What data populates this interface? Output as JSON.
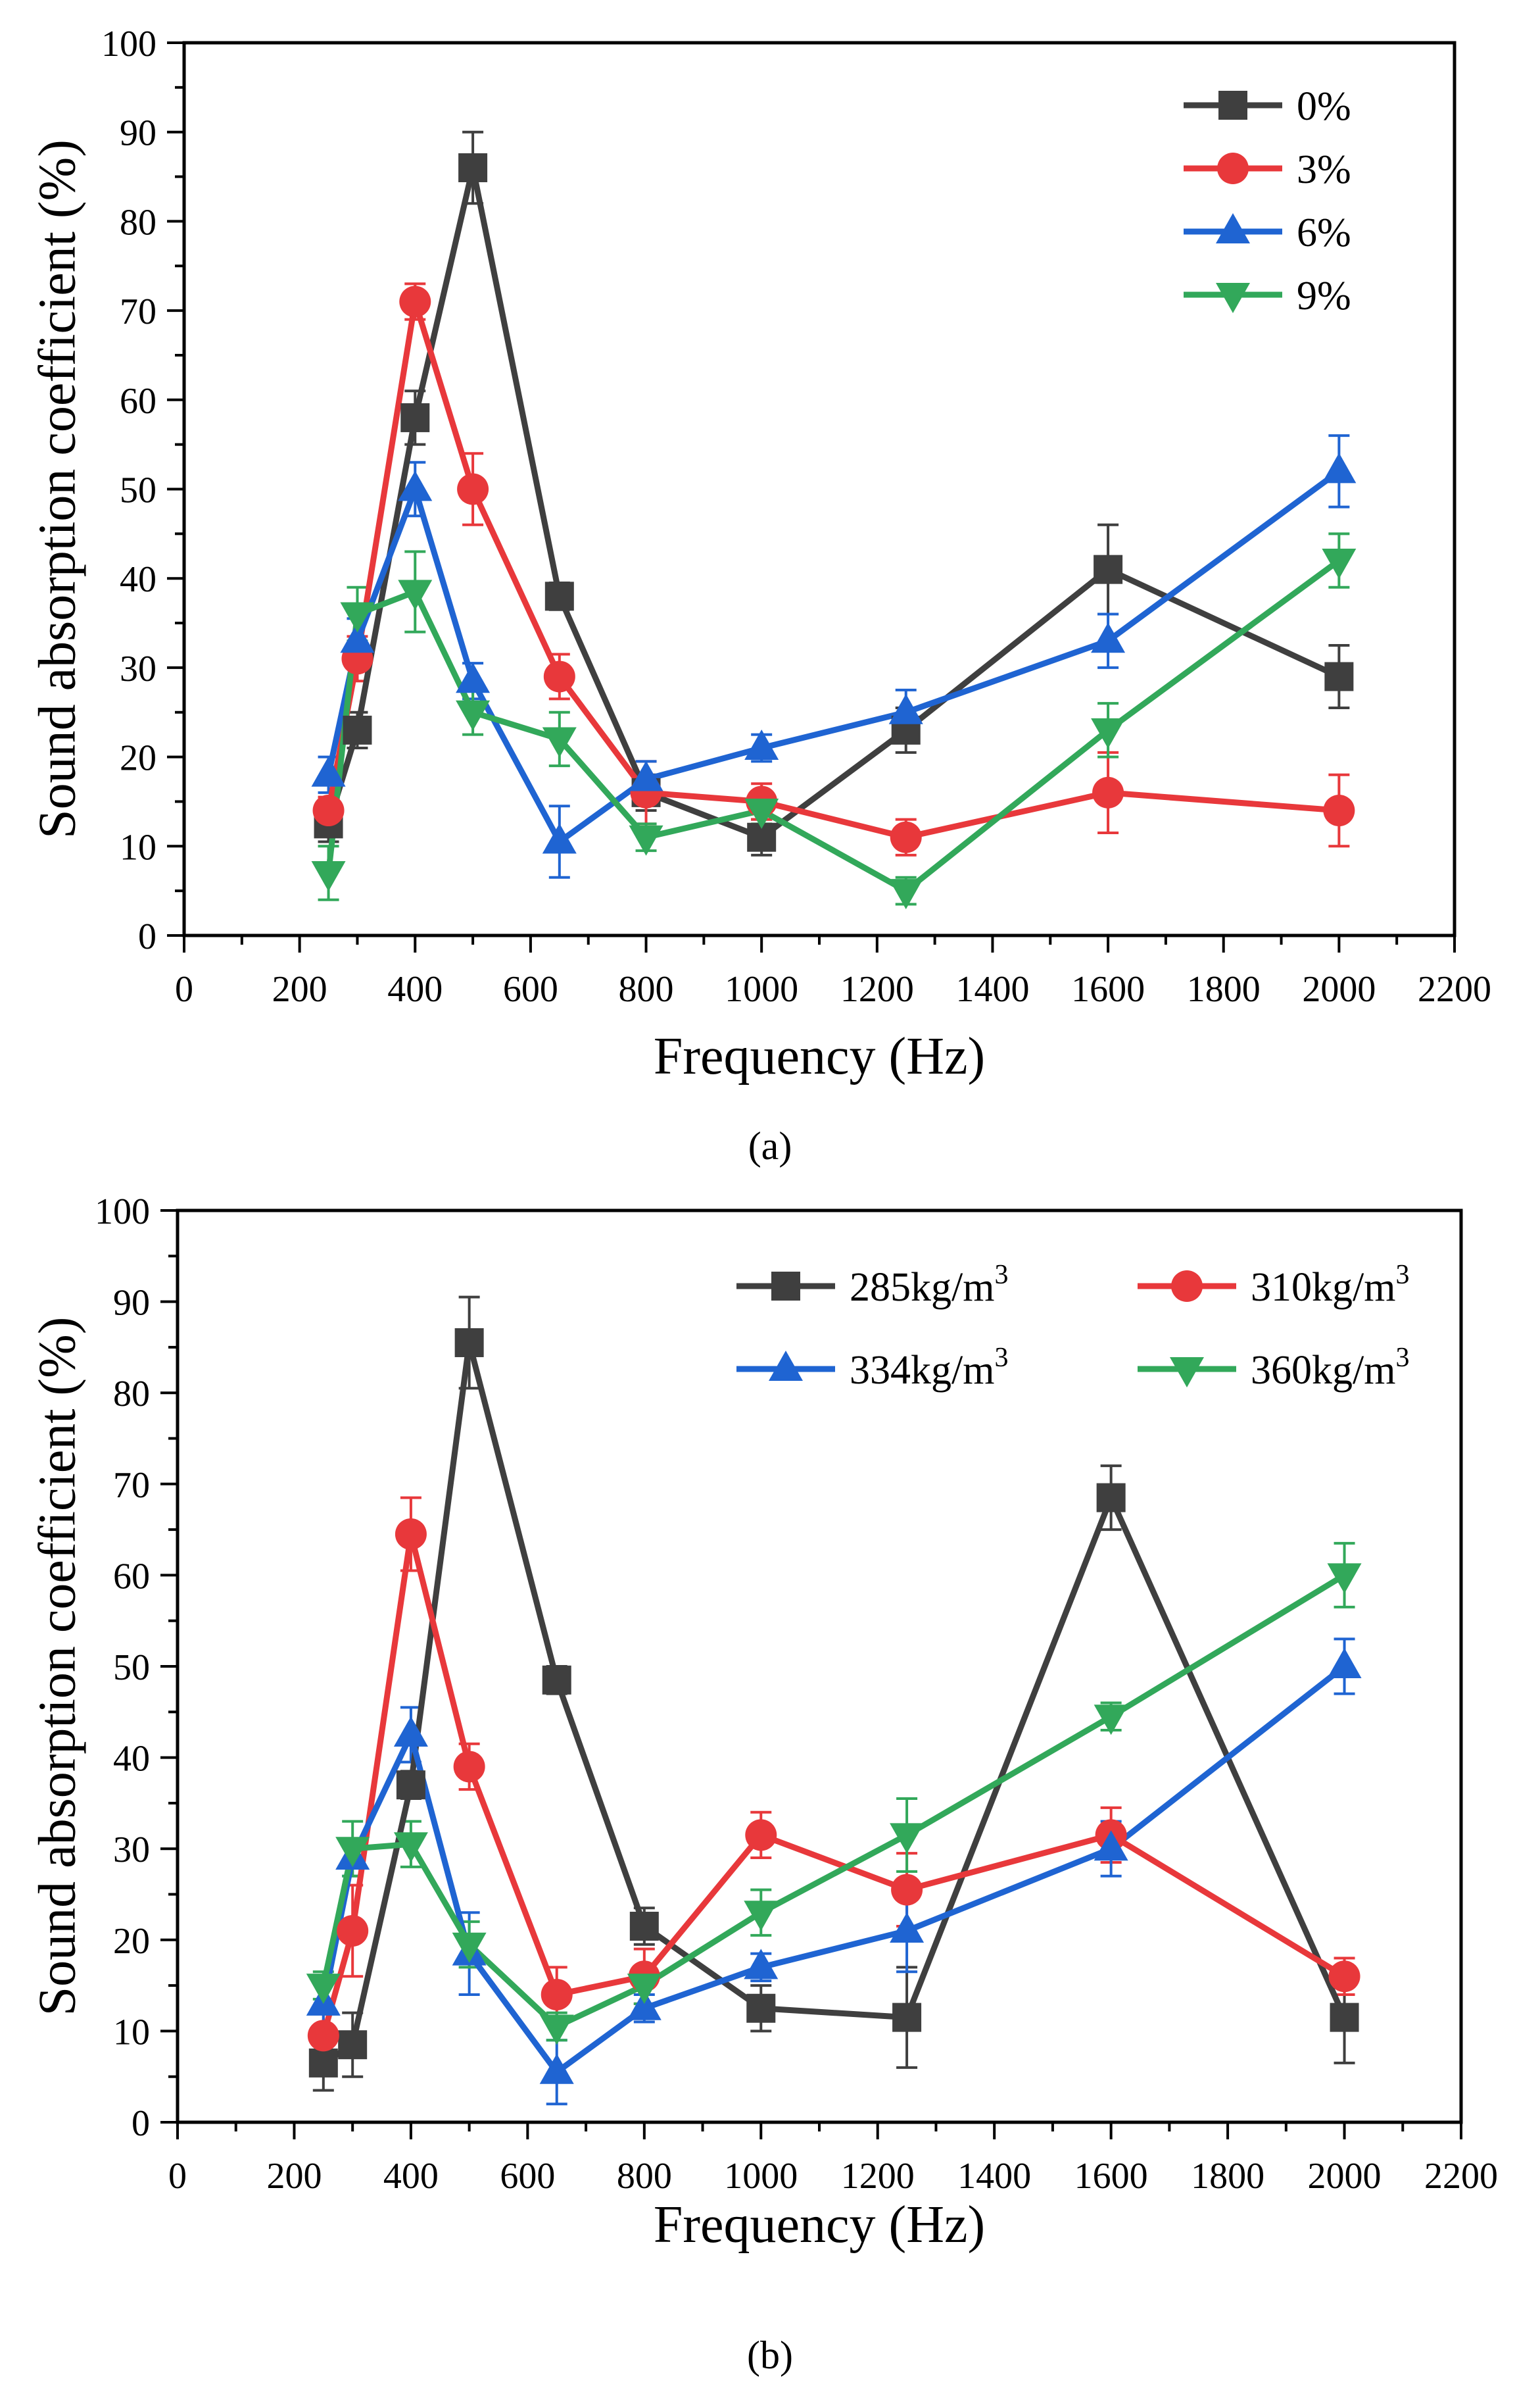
{
  "figure": {
    "panel_labels": [
      "(a)",
      "(b)"
    ]
  },
  "chart_data": [
    {
      "type": "line",
      "panel": "(a)",
      "xlabel": "Frequency (Hz)",
      "ylabel": "Sound absorption coefficient (%)",
      "xlim": [
        0,
        2200
      ],
      "ylim": [
        0,
        100
      ],
      "xticks": [
        0,
        200,
        400,
        600,
        800,
        1000,
        1200,
        1400,
        1600,
        1800,
        2000,
        2200
      ],
      "yticks": [
        0,
        10,
        20,
        30,
        40,
        50,
        60,
        70,
        80,
        90,
        100
      ],
      "legend_position": "top-right",
      "x": [
        250,
        300,
        400,
        500,
        650,
        800,
        1000,
        1250,
        1600,
        2000
      ],
      "series": [
        {
          "name": "0%",
          "marker": "square",
          "color": "#3f3f3f",
          "values": [
            12.5,
            23,
            58,
            86,
            38,
            16,
            11,
            23,
            41,
            29
          ],
          "errors": [
            2,
            2,
            3,
            4,
            1.5,
            2,
            2,
            2.5,
            5,
            3.5
          ]
        },
        {
          "name": "3%",
          "marker": "circle",
          "color": "#e8383b",
          "values": [
            14,
            31,
            71,
            50,
            29,
            16,
            15,
            11,
            16,
            14
          ],
          "errors": [
            1.5,
            2.5,
            2,
            4,
            2.5,
            3.5,
            2,
            2,
            4.5,
            4
          ]
        },
        {
          "name": "6%",
          "marker": "triangle-up",
          "color": "#1f64d2",
          "values": [
            18,
            33,
            50,
            28.5,
            10.5,
            17.5,
            21,
            25,
            33,
            52
          ],
          "errors": [
            2,
            2.5,
            3,
            2,
            4,
            2,
            1.5,
            2.5,
            3,
            4
          ]
        },
        {
          "name": "9%",
          "marker": "triangle-down",
          "color": "#32a85a",
          "values": [
            7,
            36,
            38.5,
            25,
            22,
            11,
            14,
            5,
            23,
            42
          ],
          "errors": [
            3,
            3,
            4.5,
            2.5,
            3,
            1.5,
            1.5,
            1.5,
            3,
            3
          ]
        }
      ]
    },
    {
      "type": "line",
      "panel": "(b)",
      "xlabel": "Frequency (Hz)",
      "ylabel": "Sound absorption coefficient (%)",
      "xlim": [
        0,
        2200
      ],
      "ylim": [
        0,
        100
      ],
      "xticks": [
        0,
        200,
        400,
        600,
        800,
        1000,
        1200,
        1400,
        1600,
        1800,
        2000,
        2200
      ],
      "yticks": [
        0,
        10,
        20,
        30,
        40,
        50,
        60,
        70,
        80,
        90,
        100
      ],
      "legend_position": "top-right",
      "x": [
        250,
        300,
        400,
        500,
        650,
        800,
        1000,
        1250,
        1600,
        2000
      ],
      "series": [
        {
          "name": "285kg/m",
          "unit_sup": "3",
          "marker": "square",
          "color": "#3f3f3f",
          "values": [
            6.5,
            8.5,
            37,
            85.5,
            48.5,
            21.5,
            12.5,
            11.5,
            68.5,
            11.5
          ],
          "errors": [
            3,
            3.5,
            1.5,
            5,
            1.5,
            2,
            2.5,
            5.5,
            3.5,
            5
          ]
        },
        {
          "name": "310kg/m",
          "unit_sup": "3",
          "marker": "circle",
          "color": "#e8383b",
          "values": [
            9.5,
            21,
            64.5,
            39,
            14,
            16,
            31.5,
            25.5,
            31.5,
            16
          ],
          "errors": [
            3,
            5,
            4,
            2.5,
            3,
            3,
            2.5,
            4,
            3,
            2
          ]
        },
        {
          "name": "334kg/m",
          "unit_sup": "3",
          "marker": "triangle-up",
          "color": "#1f64d2",
          "values": [
            13,
            29,
            42.5,
            18.5,
            5.5,
            12.5,
            17,
            21,
            30,
            50
          ],
          "errors": [
            2.5,
            2,
            3,
            4.5,
            3.5,
            1.5,
            1.5,
            4.5,
            3,
            3
          ]
        },
        {
          "name": "360kg/m",
          "unit_sup": "3",
          "marker": "triangle-down",
          "color": "#32a85a",
          "values": [
            15,
            30,
            30.5,
            19.5,
            10.5,
            15,
            23,
            31.5,
            44.5,
            60
          ],
          "errors": [
            1.5,
            3,
            2.5,
            2.5,
            1.5,
            2,
            2.5,
            4,
            1.5,
            3.5
          ]
        }
      ]
    }
  ]
}
